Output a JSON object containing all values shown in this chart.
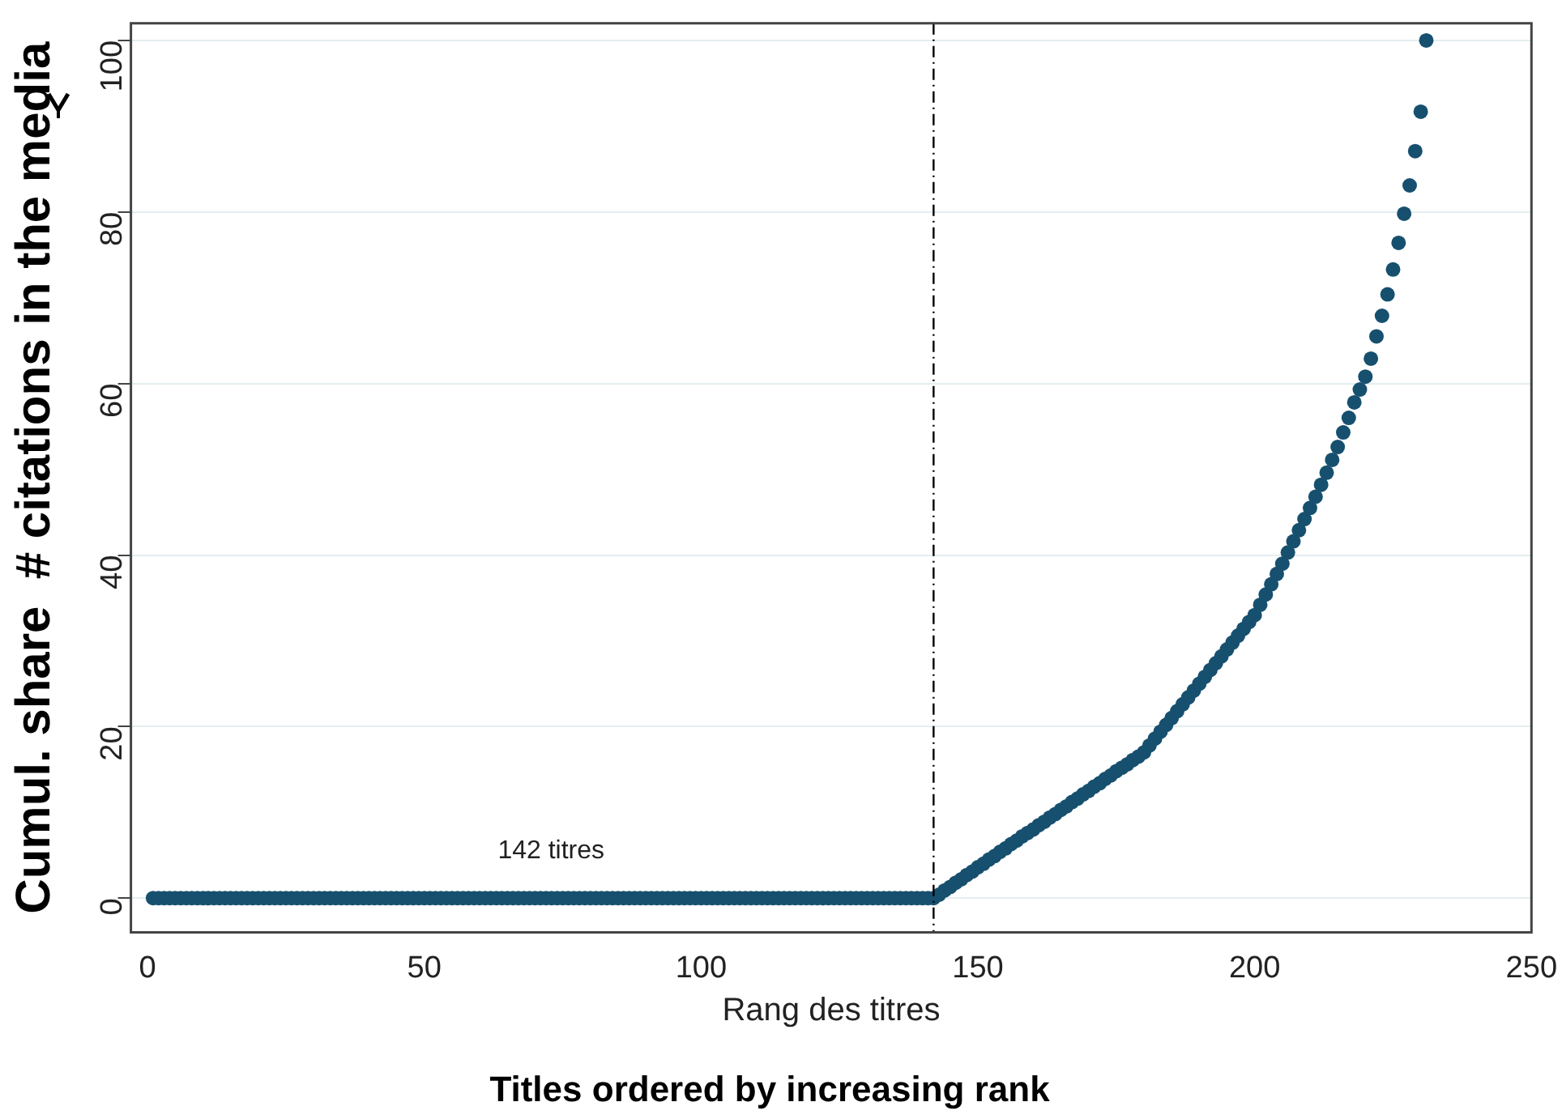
{
  "chart_data": {
    "type": "scatter",
    "title": "Titles ordered by increasing rank",
    "xlabel": "Rang des titres",
    "ylabel": "Cumul. share  # citations in the media",
    "annotations": [
      "142 titres"
    ],
    "x": [
      1,
      2,
      3,
      4,
      5,
      6,
      7,
      8,
      9,
      10,
      11,
      12,
      13,
      14,
      15,
      16,
      17,
      18,
      19,
      20,
      21,
      22,
      23,
      24,
      25,
      26,
      27,
      28,
      29,
      30,
      31,
      32,
      33,
      34,
      35,
      36,
      37,
      38,
      39,
      40,
      41,
      42,
      43,
      44,
      45,
      46,
      47,
      48,
      49,
      50,
      51,
      52,
      53,
      54,
      55,
      56,
      57,
      58,
      59,
      60,
      61,
      62,
      63,
      64,
      65,
      66,
      67,
      68,
      69,
      70,
      71,
      72,
      73,
      74,
      75,
      76,
      77,
      78,
      79,
      80,
      81,
      82,
      83,
      84,
      85,
      86,
      87,
      88,
      89,
      90,
      91,
      92,
      93,
      94,
      95,
      96,
      97,
      98,
      99,
      100,
      101,
      102,
      103,
      104,
      105,
      106,
      107,
      108,
      109,
      110,
      111,
      112,
      113,
      114,
      115,
      116,
      117,
      118,
      119,
      120,
      121,
      122,
      123,
      124,
      125,
      126,
      127,
      128,
      129,
      130,
      131,
      132,
      133,
      134,
      135,
      136,
      137,
      138,
      139,
      140,
      141,
      142,
      143,
      144,
      145,
      146,
      147,
      148,
      149,
      150,
      151,
      152,
      153,
      154,
      155,
      156,
      157,
      158,
      159,
      160,
      161,
      162,
      163,
      164,
      165,
      166,
      167,
      168,
      169,
      170,
      171,
      172,
      173,
      174,
      175,
      176,
      177,
      178,
      179,
      180,
      181,
      182,
      183,
      184,
      185,
      186,
      187,
      188,
      189,
      190,
      191,
      192,
      193,
      194,
      195,
      196,
      197,
      198,
      199,
      200,
      201,
      202,
      203,
      204,
      205,
      206,
      207,
      208,
      209,
      210,
      211,
      212,
      213,
      214,
      215,
      216,
      217,
      218,
      219,
      220,
      221,
      222,
      223,
      224,
      225,
      226,
      227,
      228,
      229,
      230,
      231
    ],
    "series": [
      {
        "color": "#17506f",
        "values": [
          0,
          0,
          0,
          0,
          0,
          0,
          0,
          0,
          0,
          0,
          0,
          0,
          0,
          0,
          0,
          0,
          0,
          0,
          0,
          0,
          0,
          0,
          0,
          0,
          0,
          0,
          0,
          0,
          0,
          0,
          0,
          0,
          0,
          0,
          0,
          0,
          0,
          0,
          0,
          0,
          0,
          0,
          0,
          0,
          0,
          0,
          0,
          0,
          0,
          0,
          0,
          0,
          0,
          0,
          0,
          0,
          0,
          0,
          0,
          0,
          0,
          0,
          0,
          0,
          0,
          0,
          0,
          0,
          0,
          0,
          0,
          0,
          0,
          0,
          0,
          0,
          0,
          0,
          0,
          0,
          0,
          0,
          0,
          0,
          0,
          0,
          0,
          0,
          0,
          0,
          0,
          0,
          0,
          0,
          0,
          0,
          0,
          0,
          0,
          0,
          0,
          0,
          0,
          0,
          0,
          0,
          0,
          0,
          0,
          0,
          0,
          0,
          0,
          0,
          0,
          0,
          0,
          0,
          0,
          0,
          0,
          0,
          0,
          0,
          0,
          0,
          0,
          0,
          0,
          0,
          0,
          0,
          0,
          0,
          0,
          0,
          0,
          0,
          0,
          0,
          0,
          0,
          0.4,
          0.9,
          1.3,
          1.8,
          2.2,
          2.7,
          3.1,
          3.6,
          4.0,
          4.5,
          4.9,
          5.4,
          5.8,
          6.3,
          6.7,
          7.2,
          7.6,
          8.0,
          8.5,
          8.9,
          9.4,
          9.8,
          10.3,
          10.7,
          11.2,
          11.6,
          12.1,
          12.5,
          13.0,
          13.4,
          13.9,
          14.3,
          14.8,
          15.2,
          15.6,
          16.1,
          16.5,
          17.0,
          17.8,
          18.6,
          19.4,
          20.2,
          21.0,
          21.8,
          22.6,
          23.4,
          24.2,
          25.0,
          25.8,
          26.6,
          27.4,
          28.2,
          29.0,
          29.8,
          30.6,
          31.4,
          32.2,
          33.0,
          34.2,
          35.4,
          36.6,
          37.8,
          39.0,
          40.3,
          41.6,
          42.9,
          44.2,
          45.5,
          46.8,
          48.2,
          49.6,
          51.1,
          52.6,
          54.3,
          56.0,
          57.8,
          59.3,
          60.8,
          62.9,
          65.5,
          67.9,
          70.4,
          73.3,
          76.4,
          79.8,
          83.1,
          87.1,
          91.7,
          100
        ]
      }
    ],
    "xlim": [
      -3,
      250
    ],
    "xticks": [
      0,
      50,
      100,
      150,
      200,
      250
    ],
    "ylim": [
      -4,
      102
    ],
    "yticks": [
      0,
      20,
      40,
      60,
      80,
      100
    ],
    "ref_lines": [
      {
        "axis": "x",
        "value": 142,
        "color": "#000000",
        "line_style": "dashed"
      }
    ],
    "grid": "y",
    "marker": "circle",
    "legend": false
  }
}
